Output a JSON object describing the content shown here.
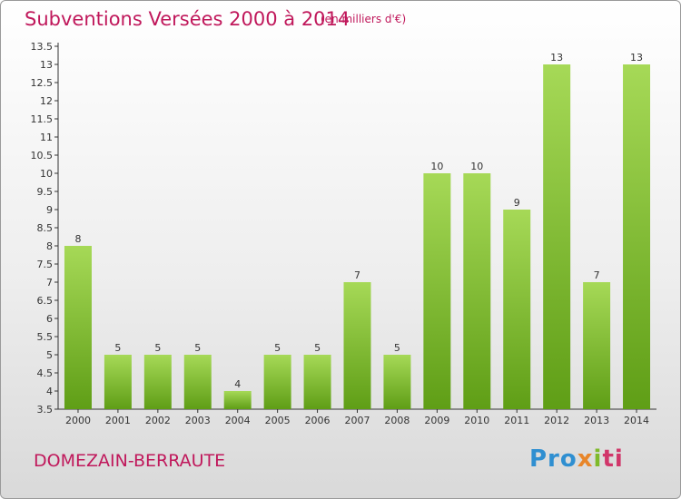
{
  "header": {
    "title": "Subventions Versées 2000 à 2014",
    "subtitle": "(en milliers d'€)"
  },
  "footer": {
    "place": "DOMEZAIN-BERRAUTE",
    "logo": [
      "Pro",
      "x",
      "i",
      "ti"
    ]
  },
  "colors": {
    "title": "#c0185b",
    "bar_light": "#a6d957",
    "bar_dark": "#5f9e16",
    "axis": "#333333"
  },
  "chart_data": {
    "type": "bar",
    "title": "Subventions Versées 2000 à 2014",
    "subtitle": "(en milliers d'€)",
    "categories": [
      "2000",
      "2001",
      "2002",
      "2003",
      "2004",
      "2005",
      "2006",
      "2007",
      "2008",
      "2009",
      "2010",
      "2011",
      "2012",
      "2013",
      "2014"
    ],
    "values": [
      8,
      5,
      5,
      5,
      4,
      5,
      5,
      7,
      5,
      10,
      10,
      9,
      13,
      7,
      13
    ],
    "ylim": [
      3.5,
      13.5
    ],
    "yticks": [
      "3.5",
      "4",
      "4.5",
      "5",
      "5.5",
      "6",
      "6.5",
      "7",
      "7.5",
      "8",
      "8.5",
      "9",
      "9.5",
      "10",
      "10.5",
      "11",
      "11.5",
      "12",
      "12.5",
      "13",
      "13.5"
    ],
    "xlabel": "",
    "ylabel": "",
    "grid": false
  }
}
